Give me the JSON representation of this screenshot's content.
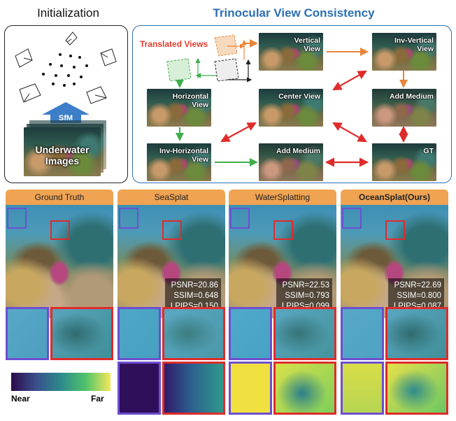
{
  "titles": {
    "init": "Initialization",
    "tri": "Trinocular View Consistency"
  },
  "init_panel": {
    "sfm": "SfM",
    "images_line1": "Underwater",
    "images_line2": "Images"
  },
  "tri_panel": {
    "translated_views": "Translated Views",
    "vertical_line1": "Vertical",
    "vertical_line2": "View",
    "inv_vertical_line1": "Inv-Vertical",
    "inv_vertical_line2": "View",
    "horizontal_line1": "Horizontal",
    "horizontal_line2": "View",
    "center": "Center View",
    "add_medium_top": "Add Medium",
    "inv_horizontal_line1": "Inv-Horizontal",
    "inv_horizontal_line2": "View",
    "add_medium_bottom": "Add Medium",
    "gt": "GT"
  },
  "columns": [
    {
      "header": "Ground Truth"
    },
    {
      "header": "SeaSplat",
      "psnr": "PSNR=20.86",
      "ssim": "SSIM=0.648",
      "lpips": "LPIPS=0.150"
    },
    {
      "header": "WaterSplatting",
      "psnr": "PSNR=22.53",
      "ssim": "SSIM=0.793",
      "lpips": "LPIPS=0.099"
    },
    {
      "header": "OceanSplat(Ours)",
      "psnr": "PSNR=22.69",
      "ssim": "SSIM=0.800",
      "lpips": "LPIPS=0.087"
    }
  ],
  "colorbar": {
    "near": "Near",
    "far": "Far"
  },
  "colors": {
    "accent_blue": "#2c6fb6",
    "translated_red": "#e53b2c",
    "arrow_orange": "#e8853a",
    "arrow_green": "#3fae4a",
    "arrow_red": "#e02b2b",
    "header_orange": "#f0a352"
  }
}
